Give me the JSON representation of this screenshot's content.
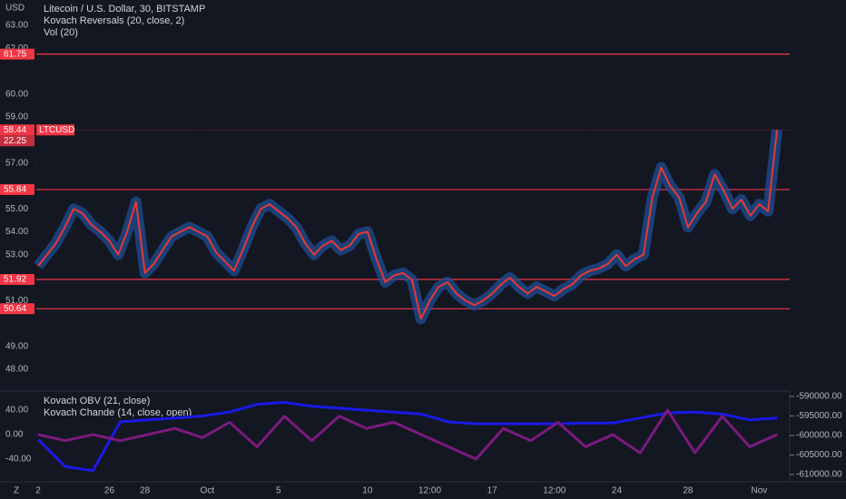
{
  "chart_data": [
    {
      "type": "line",
      "axis_unit": "USD",
      "legend": [
        "Litecoin / U.S. Dollar, 30, BITSTAMP",
        "Kovach Reversals (20, close, 2)",
        "Vol (20)"
      ],
      "categories": [
        "2",
        null,
        null,
        null,
        null,
        null,
        null,
        null,
        "26",
        null,
        null,
        null,
        "28",
        null,
        null,
        null,
        null,
        null,
        null,
        "Oct",
        null,
        null,
        null,
        null,
        null,
        null,
        null,
        "5",
        null,
        null,
        null,
        null,
        null,
        null,
        null,
        null,
        null,
        "10",
        null,
        null,
        null,
        null,
        null,
        null,
        "12:00",
        null,
        null,
        null,
        null,
        null,
        null,
        "17",
        null,
        null,
        null,
        null,
        null,
        null,
        "12:00",
        null,
        null,
        null,
        null,
        null,
        null,
        "24",
        null,
        null,
        null,
        null,
        null,
        null,
        null,
        "28",
        null,
        null,
        null,
        null,
        null,
        null,
        null,
        "Nov",
        null,
        null
      ],
      "series": [
        {
          "name": "LTCUSD",
          "color": "#e53935",
          "values": [
            52.5,
            53.0,
            53.5,
            54.2,
            55.0,
            54.8,
            54.3,
            54.0,
            53.6,
            53.0,
            54.0,
            55.3,
            52.2,
            52.6,
            53.2,
            53.8,
            54.0,
            54.2,
            54.0,
            53.8,
            53.1,
            52.7,
            52.3,
            53.2,
            54.2,
            55.0,
            55.2,
            54.9,
            54.6,
            54.2,
            53.5,
            53.0,
            53.4,
            53.6,
            53.2,
            53.4,
            53.9,
            54.0,
            52.8,
            51.8,
            52.1,
            52.2,
            51.9,
            50.2,
            51.0,
            51.6,
            51.8,
            51.3,
            51.0,
            50.8,
            51.0,
            51.3,
            51.7,
            52.0,
            51.6,
            51.3,
            51.6,
            51.4,
            51.2,
            51.5,
            51.7,
            52.1,
            52.3,
            52.4,
            52.6,
            53.0,
            52.5,
            52.8,
            53.0,
            55.5,
            56.8,
            56.0,
            55.5,
            54.2,
            54.8,
            55.3,
            56.5,
            55.8,
            55.0,
            55.4,
            54.7,
            55.2,
            54.9,
            58.44
          ]
        }
      ],
      "band_color": "#1f4d94",
      "levels": [
        61.75,
        55.84,
        51.92,
        50.64
      ],
      "level_color": "#f23645",
      "last_price": 58.44,
      "last_volume": 22.25,
      "ylim": [
        47.09,
        64.11
      ],
      "yticks": [
        {
          "value": 63,
          "label": "63.00"
        },
        {
          "value": 62,
          "label": "62.00"
        },
        {
          "value": 60,
          "label": "60.00"
        },
        {
          "value": 59,
          "label": "59.00"
        },
        {
          "value": 57,
          "label": "57.00"
        },
        {
          "value": 55,
          "label": "55.00"
        },
        {
          "value": 54,
          "label": "54.00"
        },
        {
          "value": 53,
          "label": "53.00"
        },
        {
          "value": 51,
          "label": "51.00"
        },
        {
          "value": 49,
          "label": "49.00"
        },
        {
          "value": 48,
          "label": "48.00"
        }
      ]
    },
    {
      "type": "line",
      "series": [
        {
          "name": "Kovach OBV (21, close)",
          "color": "#1a1ae6",
          "axis": "y2",
          "values": [
            -601000,
            -608000,
            -609000,
            -596500,
            -596000,
            -595500,
            -595000,
            -594000,
            -592000,
            -591500,
            -592500,
            -593000,
            -593500,
            -594000,
            -594500,
            -596500,
            -597000,
            -597000,
            -597000,
            -597000,
            -596800,
            -596800,
            -595500,
            -594200,
            -594000,
            -594500,
            -596000,
            -595500
          ]
        },
        {
          "name": "Kovach Chande (14, close, open)",
          "color": "#7b1a7e",
          "values": [
            0,
            -10,
            0,
            -10,
            0,
            10,
            -5,
            20,
            -20,
            30,
            -10,
            30,
            10,
            20,
            0,
            -20,
            -40,
            10,
            -10,
            20,
            -20,
            0,
            -30,
            40,
            -30,
            30,
            -20,
            0
          ]
        }
      ],
      "ylim": [
        -75.6,
        69.6
      ],
      "yticks": [
        {
          "value": 40,
          "label": "40.00"
        },
        {
          "value": 0,
          "label": "0.00"
        },
        {
          "value": -40,
          "label": "-40.00"
        }
      ],
      "y2lim": [
        -611628,
        -588837
      ],
      "y2ticks": [
        {
          "value": -590000,
          "label": "-590000.00"
        },
        {
          "value": -595000,
          "label": "-595000.00"
        },
        {
          "value": -600000,
          "label": "-600000.00"
        },
        {
          "value": -605000,
          "label": "-605000.00"
        },
        {
          "value": -610000,
          "label": "-610000.00"
        }
      ]
    }
  ],
  "footer": {
    "timezone_button": "Z"
  }
}
